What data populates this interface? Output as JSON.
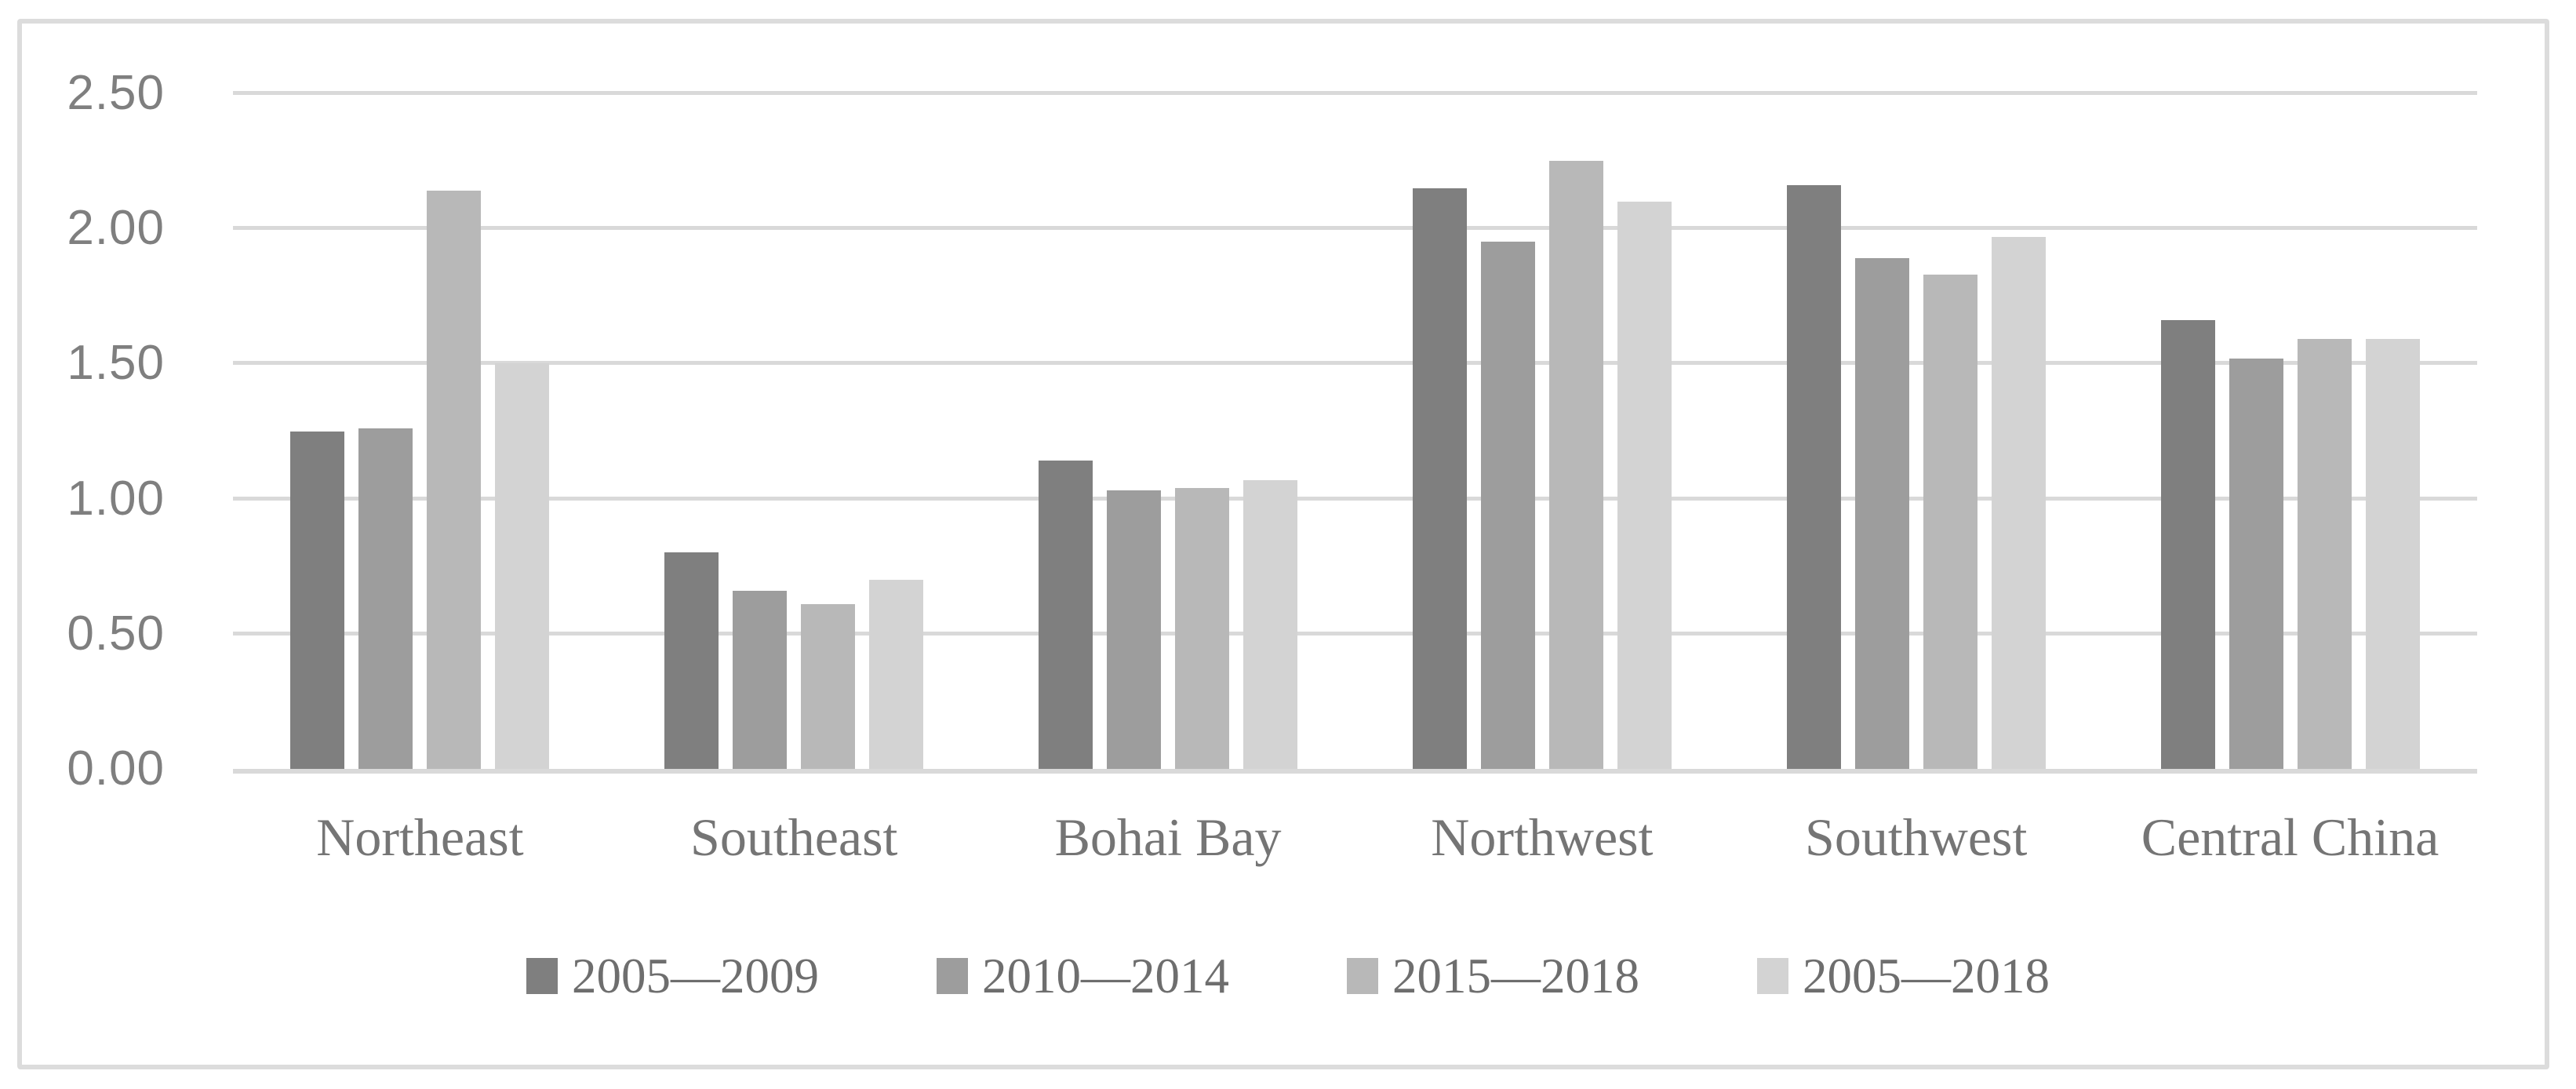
{
  "chart_data": {
    "type": "bar",
    "title": "",
    "xlabel": "",
    "ylabel": "",
    "categories": [
      "Northeast",
      "Southeast",
      "Bohai Bay",
      "Northwest",
      "Southwest",
      "Central China"
    ],
    "series": [
      {
        "name": "2005—2009",
        "color": "#7f7f7f",
        "values": [
          1.25,
          0.8,
          1.14,
          2.15,
          2.16,
          1.66
        ]
      },
      {
        "name": "2010—2014",
        "color": "#9d9d9d",
        "values": [
          1.26,
          0.66,
          1.03,
          1.95,
          1.89,
          1.52
        ]
      },
      {
        "name": "2015—2018",
        "color": "#b8b8b8",
        "values": [
          2.14,
          0.61,
          1.04,
          2.25,
          1.83,
          1.59
        ]
      },
      {
        "name": "2005—2018",
        "color": "#d3d3d3",
        "values": [
          1.5,
          0.7,
          1.07,
          2.1,
          1.97,
          1.59
        ]
      }
    ],
    "ylim": [
      0,
      2.5
    ],
    "yticks": [
      0,
      0.5,
      1.0,
      1.5,
      2.0,
      2.5
    ],
    "ytick_labels": [
      "0.00",
      "0.50",
      "1.00",
      "1.50",
      "2.00",
      "2.50"
    ],
    "grid": true,
    "legend_position": "bottom",
    "colors": {
      "gridline": "#d9d9d9",
      "axis_line": "#d9d9d9",
      "y_tick_label": "#7f7f7f",
      "category_label": "#757575",
      "legend_label": "#6e6e6e",
      "frame_border": "#dcdcdc",
      "background": "#ffffff"
    }
  }
}
